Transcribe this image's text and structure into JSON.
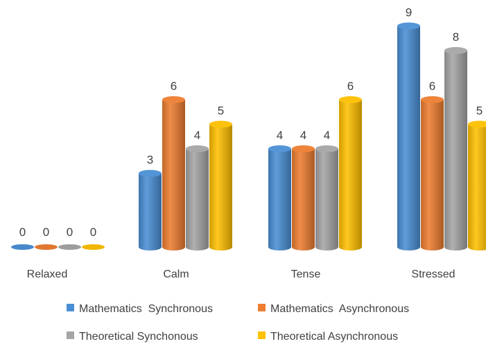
{
  "chart_data": {
    "type": "bar",
    "style": "3d-cylinder",
    "categories": [
      "Relaxed",
      "Calm",
      "Tense",
      "Stressed"
    ],
    "series": [
      {
        "name": "Mathematics  Synchronous",
        "color": "#4A8FD4",
        "values": [
          0,
          3,
          4,
          9
        ]
      },
      {
        "name": "Mathematics  Asynchronous",
        "color": "#ED7D31",
        "values": [
          0,
          6,
          4,
          6
        ]
      },
      {
        "name": "Theoretical Synchonous",
        "color": "#A5A5A5",
        "values": [
          0,
          4,
          4,
          8
        ]
      },
      {
        "name": "Theoretical Asynchronous",
        "color": "#FFC000",
        "values": [
          0,
          5,
          6,
          5
        ]
      }
    ],
    "data_labels": true,
    "legend_position": "bottom",
    "grid": false,
    "ylim": [
      0,
      9
    ]
  }
}
